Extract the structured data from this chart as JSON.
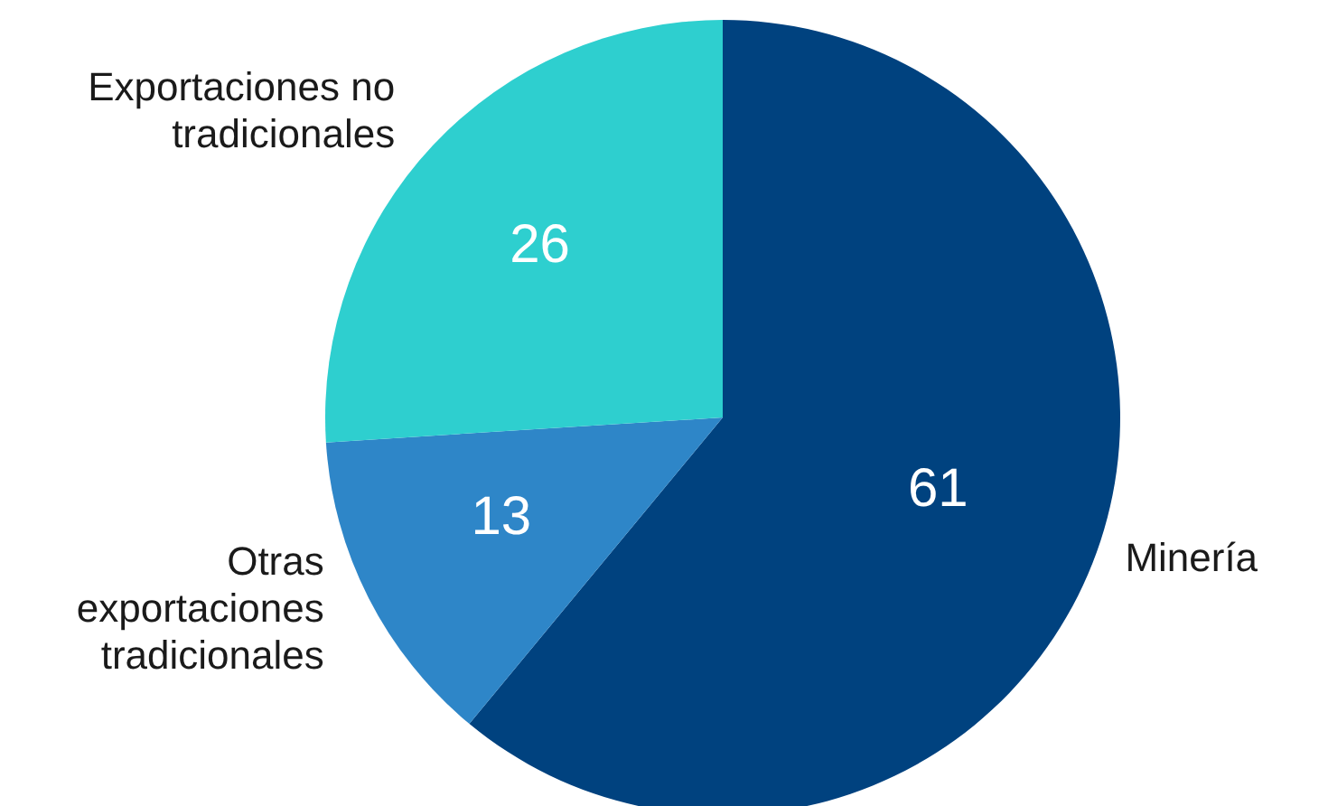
{
  "chart_data": {
    "type": "pie",
    "categories": [
      "Minería",
      "Otras exportaciones tradicionales",
      "Exportaciones no tradicionales"
    ],
    "values": [
      61,
      13,
      26
    ],
    "colors": [
      "#00427f",
      "#2e86c8",
      "#2ecfcf"
    ],
    "data_labels": true,
    "legend": false
  }
}
